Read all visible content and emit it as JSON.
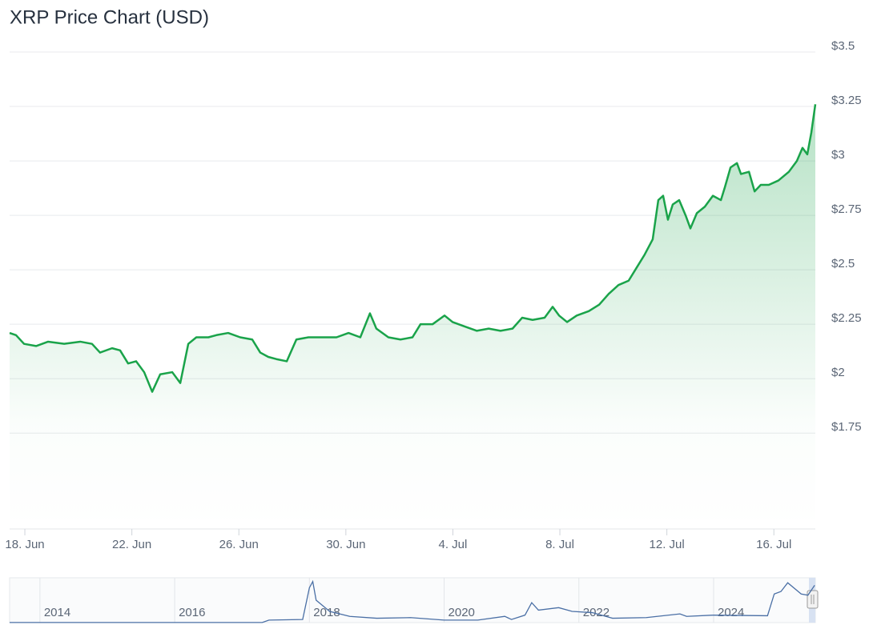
{
  "chart_data": [
    {
      "type": "area",
      "title": "XRP Price Chart (USD)",
      "color": "#1aa34a",
      "x": [
        -0.57,
        -0.33,
        -0.03,
        0.42,
        0.87,
        1.47,
        2.07,
        2.51,
        2.81,
        3.26,
        3.56,
        3.86,
        4.16,
        4.46,
        4.76,
        5.06,
        5.51,
        5.81,
        6.11,
        6.41,
        6.86,
        7.16,
        7.6,
        8.05,
        8.5,
        8.8,
        9.1,
        9.4,
        9.79,
        10.15,
        10.6,
        11.05,
        11.65,
        12.1,
        12.54,
        12.9,
        13.14,
        13.59,
        14.04,
        14.49,
        14.79,
        15.24,
        15.69,
        15.99,
        16.44,
        16.89,
        17.34,
        17.78,
        18.23,
        18.59,
        18.98,
        19.43,
        19.73,
        19.97,
        20.27,
        20.63,
        21.08,
        21.47,
        21.83,
        22.19,
        22.57,
        22.87,
        23.17,
        23.47,
        23.68,
        23.86,
        24.04,
        24.22,
        24.46,
        24.7,
        24.88,
        25.12,
        25.42,
        25.72,
        26.02,
        26.17,
        26.38,
        26.62,
        26.77,
        27.07,
        27.28,
        27.51,
        27.81,
        28.17,
        28.56,
        28.86,
        29.07,
        29.25,
        29.4,
        29.55
      ],
      "values": [
        2.21,
        2.2,
        2.16,
        2.15,
        2.17,
        2.16,
        2.17,
        2.16,
        2.12,
        2.14,
        2.13,
        2.07,
        2.08,
        2.03,
        1.94,
        2.02,
        2.03,
        1.98,
        2.16,
        2.19,
        2.19,
        2.2,
        2.21,
        2.19,
        2.18,
        2.12,
        2.1,
        2.09,
        2.08,
        2.18,
        2.19,
        2.19,
        2.19,
        2.21,
        2.19,
        2.3,
        2.23,
        2.19,
        2.18,
        2.19,
        2.25,
        2.25,
        2.29,
        2.26,
        2.24,
        2.22,
        2.23,
        2.22,
        2.23,
        2.28,
        2.27,
        2.28,
        2.33,
        2.29,
        2.26,
        2.29,
        2.31,
        2.34,
        2.39,
        2.43,
        2.45,
        2.51,
        2.57,
        2.64,
        2.82,
        2.84,
        2.73,
        2.8,
        2.82,
        2.75,
        2.69,
        2.76,
        2.79,
        2.84,
        2.82,
        2.88,
        2.97,
        2.99,
        2.94,
        2.95,
        2.86,
        2.89,
        2.89,
        2.91,
        2.95,
        3.0,
        3.06,
        3.03,
        3.13,
        3.26
      ],
      "xlim": [
        -0.57,
        29.55
      ],
      "xticks": [
        {
          "value": 0,
          "label": "18. Jun"
        },
        {
          "value": 4,
          "label": "22. Jun"
        },
        {
          "value": 8,
          "label": "26. Jun"
        },
        {
          "value": 12,
          "label": "30. Jun"
        },
        {
          "value": 16,
          "label": "4. Jul"
        },
        {
          "value": 20,
          "label": "8. Jul"
        },
        {
          "value": 24,
          "label": "12. Jul"
        },
        {
          "value": 28,
          "label": "16. Jul"
        }
      ],
      "ylim": [
        1.31,
        3.5
      ],
      "yticks": [
        {
          "value": 1.75,
          "label": "$1.75"
        },
        {
          "value": 2,
          "label": "$2"
        },
        {
          "value": 2.25,
          "label": "$2.25"
        },
        {
          "value": 2.5,
          "label": "$2.5"
        },
        {
          "value": 2.75,
          "label": "$2.75"
        },
        {
          "value": 3,
          "label": "$3"
        },
        {
          "value": 3.25,
          "label": "$3.25"
        },
        {
          "value": 3.5,
          "label": "$3.5"
        }
      ],
      "grid": true
    },
    {
      "type": "line",
      "color": "#4a6fa5",
      "x": [
        2013.55,
        2017.3,
        2017.4,
        2017.9,
        2018.0,
        2018.05,
        2018.1,
        2018.3,
        2018.6,
        2019.0,
        2019.5,
        2020.0,
        2020.5,
        2020.9,
        2021.0,
        2021.2,
        2021.3,
        2021.4,
        2021.7,
        2021.9,
        2022.2,
        2022.5,
        2023.0,
        2023.5,
        2023.6,
        2024.0,
        2024.8,
        2024.9,
        2025.0,
        2025.1,
        2025.3,
        2025.4,
        2025.5
      ],
      "values": [
        0.01,
        0.01,
        0.2,
        0.25,
        2.8,
        3.3,
        1.8,
        0.9,
        0.5,
        0.35,
        0.4,
        0.2,
        0.2,
        0.5,
        0.25,
        0.6,
        1.6,
        1.0,
        1.2,
        0.9,
        0.8,
        0.35,
        0.4,
        0.7,
        0.5,
        0.6,
        0.55,
        2.3,
        2.5,
        3.2,
        2.3,
        2.2,
        3.0
      ],
      "xlim": [
        2013.55,
        2025.51
      ],
      "xticks": [
        2014,
        2016,
        2018,
        2020,
        2022,
        2024
      ],
      "ylim": [
        0,
        3.6
      ]
    }
  ]
}
